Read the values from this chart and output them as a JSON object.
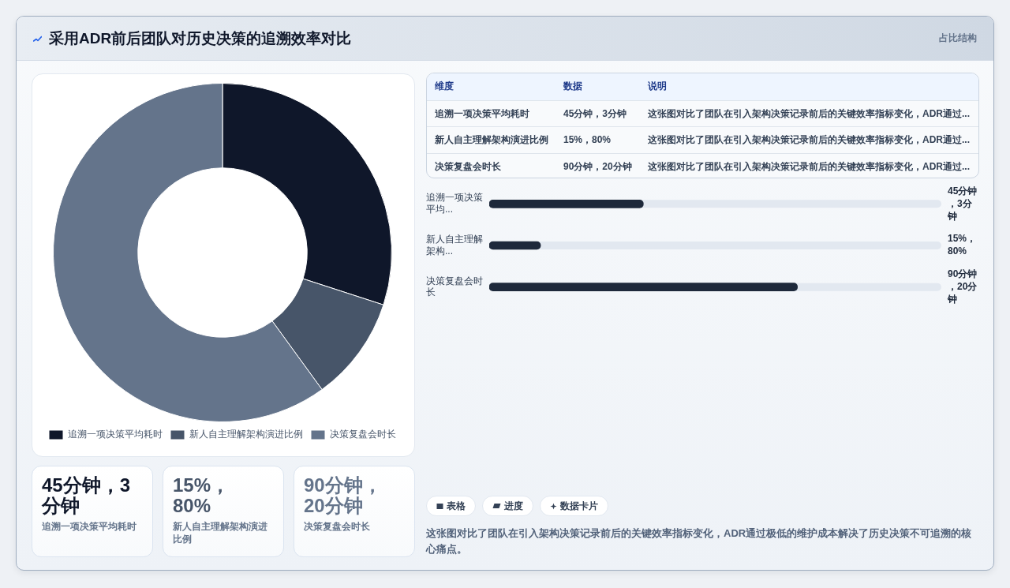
{
  "chart_data": [
    {
      "type": "donut",
      "title": "采用ADR前后团队对历史决策的追溯效率对比",
      "categories": [
        "追溯一项决策平均耗时",
        "新人自主理解架构演进比例",
        "决策复盘会时长"
      ],
      "values": [
        30,
        10,
        60
      ],
      "colors": [
        "#0f172a",
        "#475569",
        "#64748b"
      ],
      "legend": "bottom"
    },
    {
      "type": "other",
      "title": "占比结构",
      "annotations": [
        "维度",
        "数据",
        "说明",
        "追溯一项决策平均耗时",
        "45分钟，3分钟",
        "这张图对比了团队在引入架构决策记录前后的关键效率指标变化，ADR通过...",
        "新人自主理解架构演进比例",
        "15%，80%",
        "这张图对比了团队在引入架构决策记录前后的关键效率指标变化，ADR通过...",
        "决策复盘会时长",
        "90分钟，20分钟",
        "这张图对比了团队在引入架构决策记录前后的关键效率指标变化，ADR通过..."
      ]
    },
    {
      "type": "bar",
      "orientation": "horizontal",
      "categories": [
        "追溯一项决策平均...",
        "新人自主理解架构...",
        "决策复盘会时长"
      ],
      "values": [
        45,
        15,
        90
      ],
      "color": "#1e293b",
      "xlim": [
        0,
        132
      ],
      "tick_labels": "y",
      "value_labels": [
        "45分钟，3分钟",
        "15%，80%",
        "90分钟，20分钟"
      ]
    },
    {
      "type": "other",
      "annotations": [
        "45分钟，3分钟",
        "追溯一项决策平均耗时",
        "15%，80%",
        "新人自主理解架构演进比例",
        "90分钟，20分钟",
        "决策复盘会时长"
      ]
    },
    {
      "type": "other",
      "annotations": [
        "表格",
        "进度",
        "数据卡片",
        "这张图对比了团队在引入架构决策记录前后的关键效率指标变化，ADR通过极低的维护成本解决了历史决策不可追溯的核心痛点。"
      ]
    }
  ]
}
